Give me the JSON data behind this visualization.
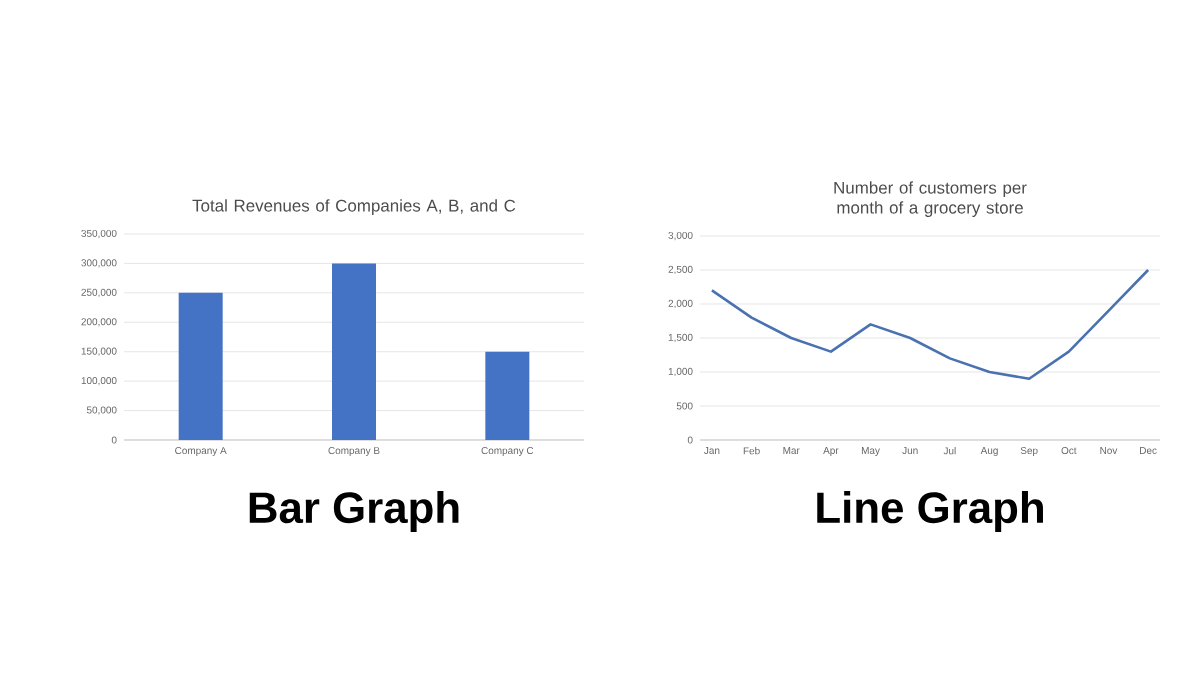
{
  "chart_data": [
    {
      "type": "bar",
      "title": "Total Revenues of Companies A, B, and C",
      "categories": [
        "Company A",
        "Company B",
        "Company C"
      ],
      "values": [
        250000,
        300000,
        150000
      ],
      "color": "#4472c4",
      "ylim": [
        0,
        350000
      ],
      "yticks": [
        0,
        {
          "value": 50000,
          "label": "50,000"
        },
        {
          "value": 100000,
          "label": "100,000"
        },
        {
          "value": 150000,
          "label": "150,000"
        },
        {
          "value": 200000,
          "label": "200,000"
        },
        {
          "value": 250000,
          "label": "250,000"
        },
        {
          "value": 300000,
          "label": "300,000"
        },
        {
          "value": 350000,
          "label": "350,000"
        }
      ],
      "grid": "y",
      "annotations": [
        "Bar Graph"
      ]
    },
    {
      "type": "line",
      "title": "Number of customers per month of a grocery store",
      "categories": [
        "Jan",
        "Feb",
        "Mar",
        "Apr",
        "May",
        "Jun",
        "Jul",
        "Aug",
        "Sep",
        "Oct",
        "Nov",
        "Dec"
      ],
      "values": [
        2200,
        1800,
        1500,
        1300,
        1700,
        1500,
        1200,
        1000,
        900,
        1300,
        1900,
        2500
      ],
      "color": "#4a72b0",
      "ylim": [
        0,
        3000
      ],
      "yticks": [
        0,
        500,
        {
          "value": 1000,
          "label": "1,000"
        },
        {
          "value": 1500,
          "label": "1,500"
        },
        {
          "value": 2000,
          "label": "2,000"
        },
        {
          "value": 2500,
          "label": "2,500"
        },
        {
          "value": 3000,
          "label": "3,000"
        }
      ],
      "grid": "y",
      "annotations": [
        "Line Graph"
      ]
    }
  ]
}
